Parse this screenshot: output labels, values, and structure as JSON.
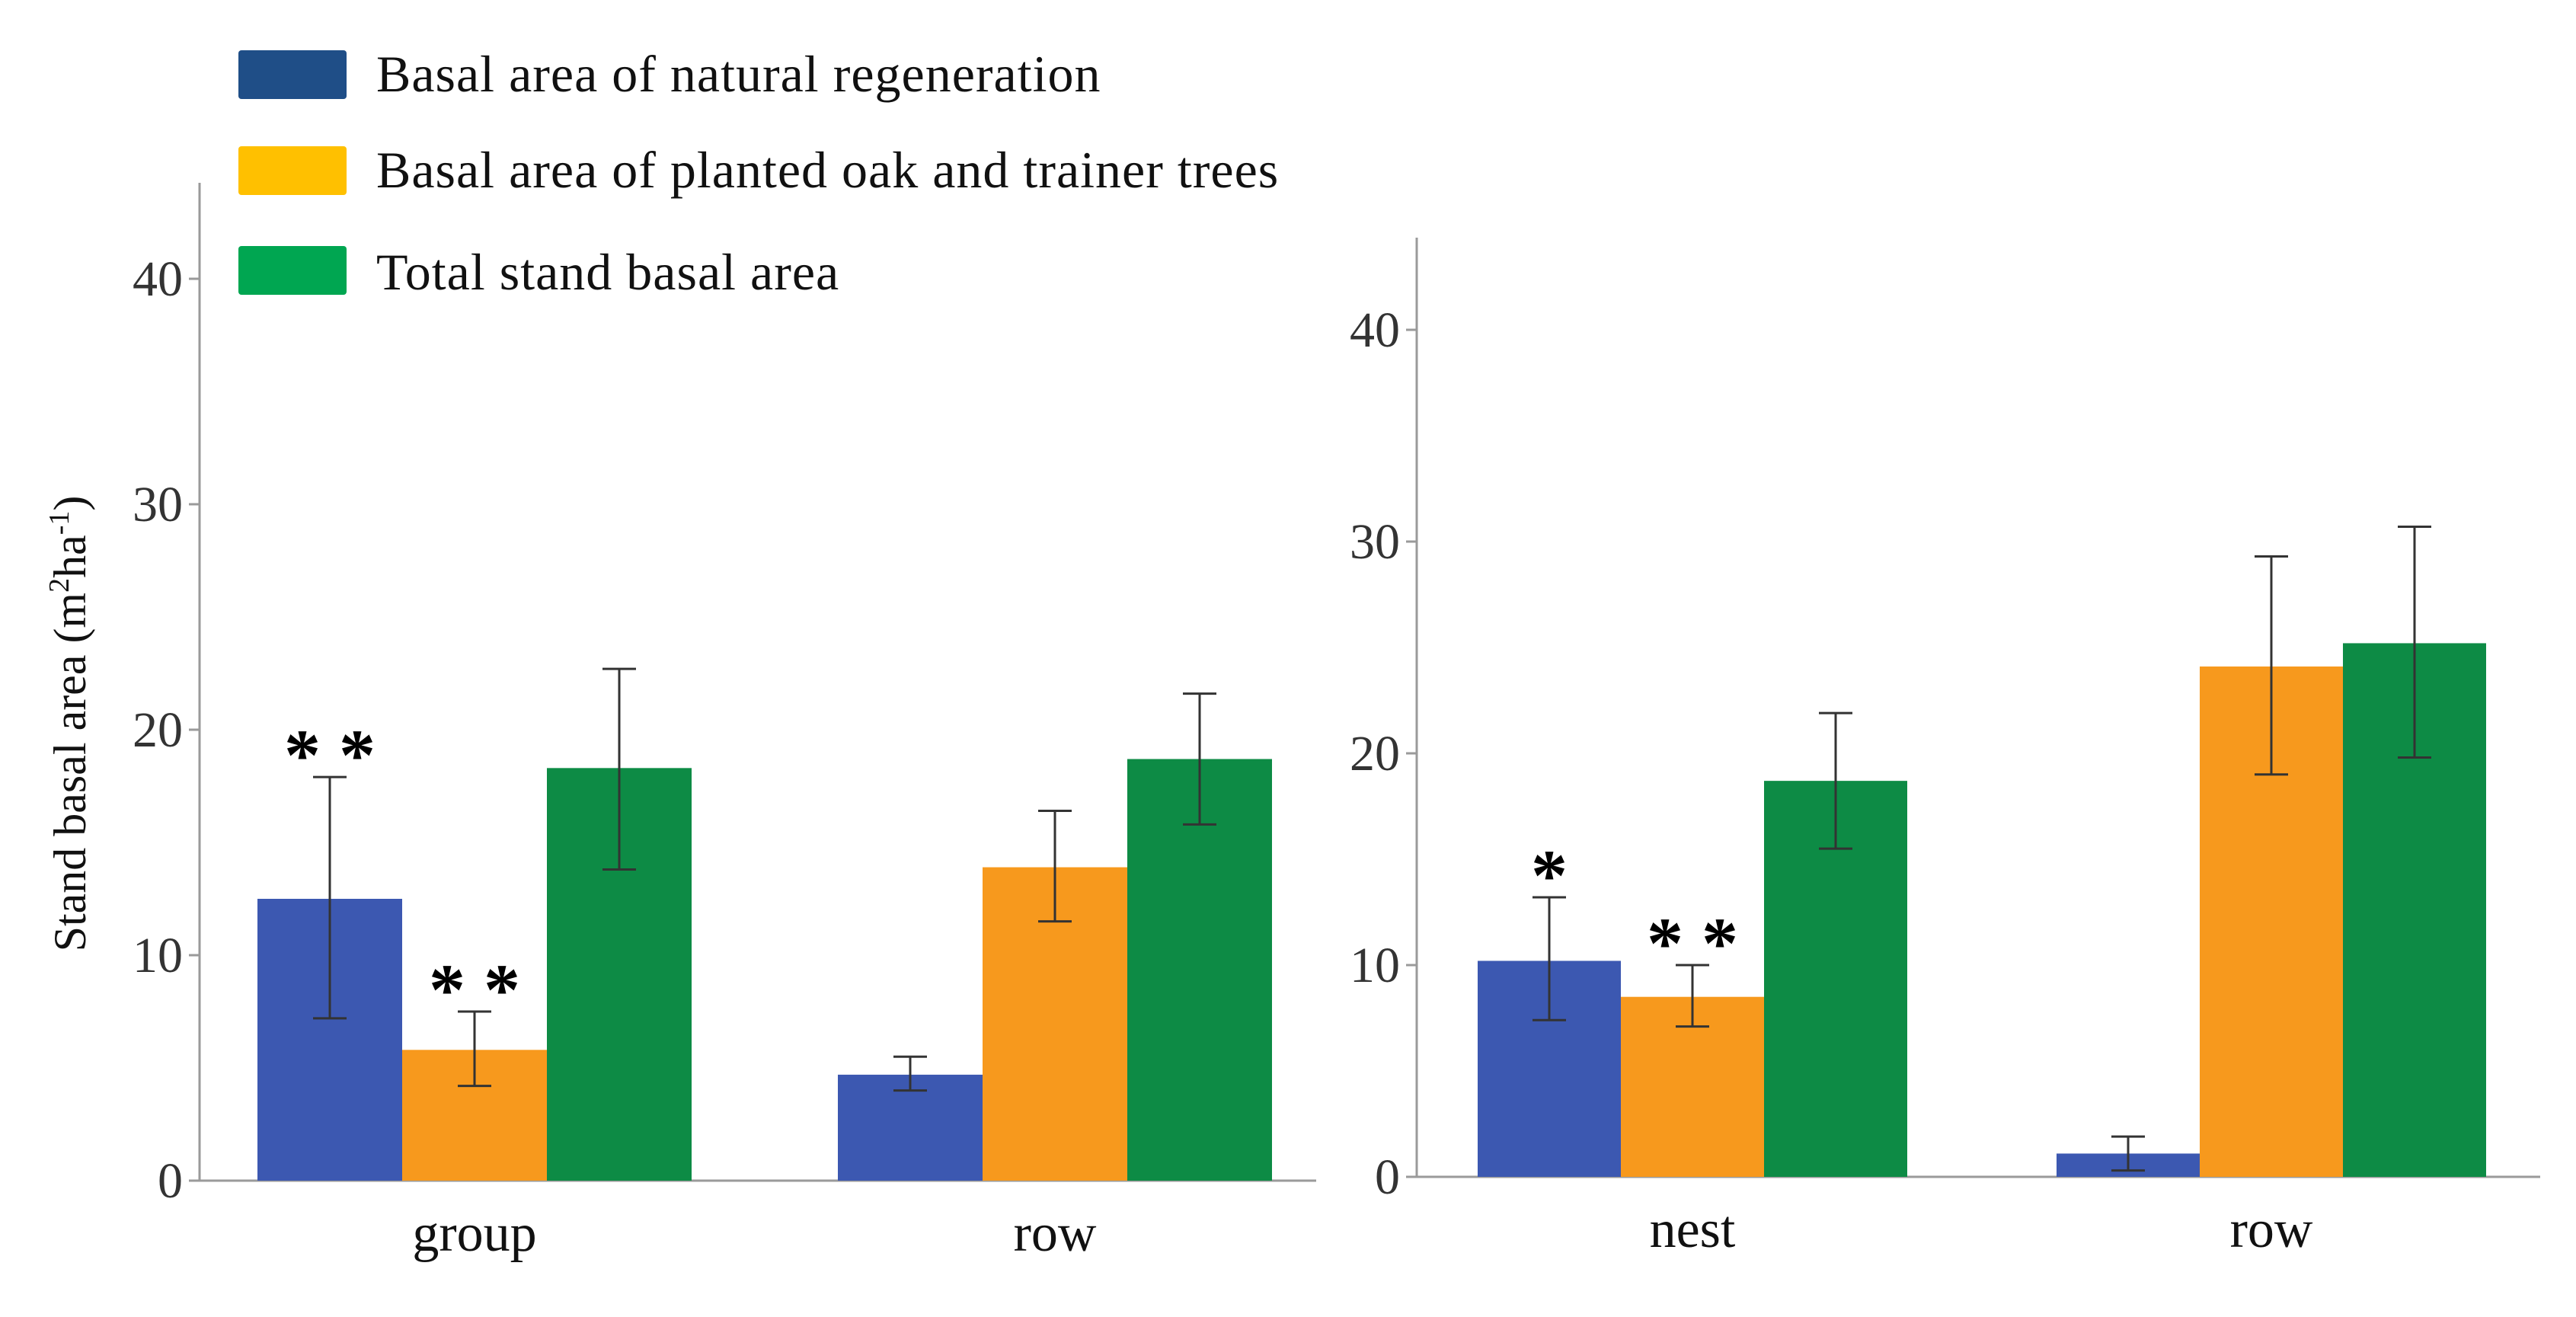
{
  "legend": {
    "items": [
      {
        "label": "Basal area of natural regeneration",
        "color": "#3c58b1",
        "swatch_color": "#1f4e87"
      },
      {
        "label": "Basal area of planted oak and trainer trees",
        "color": "#f7991d",
        "swatch_color": "#ffc000"
      },
      {
        "label": "Total stand basal area",
        "color": "#0d8b45",
        "swatch_color": "#00a651"
      }
    ]
  },
  "colors": {
    "axis": "#9a9a9a",
    "errorbar": "#333333",
    "background": "#ffffff"
  },
  "chart_data": [
    {
      "type": "bar",
      "panel": "left",
      "ylabel": "Stand basal area (m²ha⁻¹)",
      "ylabel_parts": {
        "base": "Stand basal area (m",
        "sup1": "2",
        "mid": "ha",
        "sup2": "-1",
        "end": ")"
      },
      "ylim": [
        0,
        43
      ],
      "yticks": [
        0,
        10,
        20,
        30,
        40
      ],
      "categories": [
        "group",
        "row"
      ],
      "series": [
        {
          "name": "Basal area of natural regeneration",
          "values": [
            12.5,
            4.7
          ],
          "err_low": [
            7.2,
            4.0
          ],
          "err_high": [
            17.9,
            5.5
          ]
        },
        {
          "name": "Basal area of planted oak and trainer trees",
          "values": [
            5.8,
            13.9
          ],
          "err_low": [
            4.2,
            11.5
          ],
          "err_high": [
            7.5,
            16.4
          ]
        },
        {
          "name": "Total stand basal area",
          "values": [
            18.3,
            18.7
          ],
          "err_low": [
            13.8,
            15.8
          ],
          "err_high": [
            22.7,
            21.6
          ]
        }
      ],
      "annotations": [
        {
          "category": 0,
          "series": 0,
          "text": "**"
        },
        {
          "category": 0,
          "series": 1,
          "text": "**"
        }
      ]
    },
    {
      "type": "bar",
      "panel": "right",
      "ylim": [
        0,
        44
      ],
      "yticks": [
        0,
        10,
        20,
        30,
        40
      ],
      "categories": [
        "nest",
        "row"
      ],
      "series": [
        {
          "name": "Basal area of natural regeneration",
          "values": [
            10.2,
            1.1
          ],
          "err_low": [
            7.4,
            0.3
          ],
          "err_high": [
            13.2,
            1.9
          ]
        },
        {
          "name": "Basal area of planted oak and trainer trees",
          "values": [
            8.5,
            24.1
          ],
          "err_low": [
            7.1,
            19.0
          ],
          "err_high": [
            10.0,
            29.3
          ]
        },
        {
          "name": "Total stand basal area",
          "values": [
            18.7,
            25.2
          ],
          "err_low": [
            15.5,
            19.8
          ],
          "err_high": [
            21.9,
            30.7
          ]
        }
      ],
      "annotations": [
        {
          "category": 0,
          "series": 0,
          "text": "*"
        },
        {
          "category": 0,
          "series": 1,
          "text": "**"
        }
      ]
    }
  ]
}
